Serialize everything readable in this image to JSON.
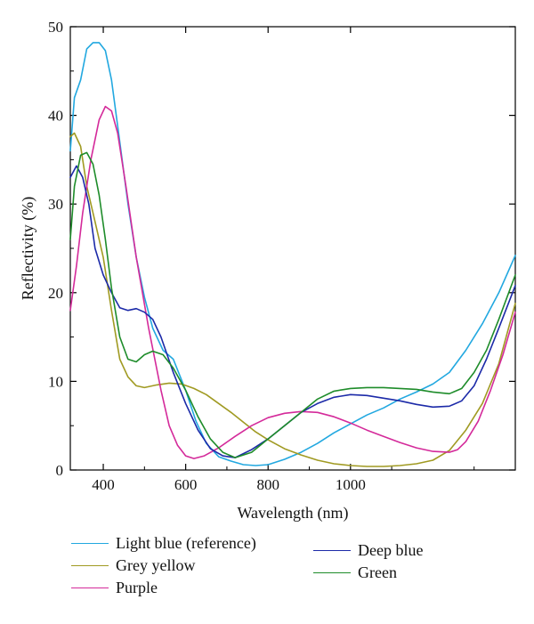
{
  "chart_data": {
    "type": "line",
    "title": "",
    "xlabel": "Wavelength (nm)",
    "ylabel": "Reflectivity (%)",
    "xlim": [
      320,
      1400
    ],
    "ylim": [
      0,
      50
    ],
    "xticks": [
      400,
      600,
      800,
      1000
    ],
    "xtick_labels": [
      "400",
      "600",
      "800",
      "1000"
    ],
    "yticks": [
      0,
      10,
      20,
      30,
      40,
      50
    ],
    "ytick_labels": [
      "0",
      "10",
      "20",
      "30",
      "40",
      "50"
    ],
    "grid": false,
    "legend_position": "bottom",
    "series": [
      {
        "name": "Light blue (reference)",
        "color": "#22a8e0",
        "points": [
          [
            320,
            36
          ],
          [
            330,
            42
          ],
          [
            345,
            44
          ],
          [
            360,
            47.5
          ],
          [
            375,
            48.2
          ],
          [
            390,
            48.2
          ],
          [
            405,
            47.3
          ],
          [
            420,
            44
          ],
          [
            440,
            37
          ],
          [
            460,
            30
          ],
          [
            480,
            24
          ],
          [
            500,
            19.5
          ],
          [
            520,
            16
          ],
          [
            545,
            13.5
          ],
          [
            570,
            12.5
          ],
          [
            600,
            9
          ],
          [
            625,
            5.5
          ],
          [
            650,
            3
          ],
          [
            680,
            1.5
          ],
          [
            710,
            1
          ],
          [
            740,
            0.6
          ],
          [
            770,
            0.5
          ],
          [
            800,
            0.6
          ],
          [
            840,
            1.2
          ],
          [
            880,
            2
          ],
          [
            920,
            3
          ],
          [
            960,
            4.2
          ],
          [
            1000,
            5.2
          ],
          [
            1040,
            6.2
          ],
          [
            1080,
            7
          ],
          [
            1120,
            8
          ],
          [
            1160,
            8.8
          ],
          [
            1200,
            9.7
          ],
          [
            1240,
            11
          ],
          [
            1280,
            13.5
          ],
          [
            1320,
            16.5
          ],
          [
            1360,
            20
          ],
          [
            1400,
            24.2
          ]
        ]
      },
      {
        "name": "Grey yellow",
        "color": "#a09a22",
        "points": [
          [
            320,
            37.6
          ],
          [
            330,
            38
          ],
          [
            345,
            36.5
          ],
          [
            360,
            32
          ],
          [
            380,
            28
          ],
          [
            400,
            24
          ],
          [
            420,
            18
          ],
          [
            440,
            12.5
          ],
          [
            460,
            10.5
          ],
          [
            480,
            9.5
          ],
          [
            500,
            9.3
          ],
          [
            530,
            9.6
          ],
          [
            560,
            9.8
          ],
          [
            590,
            9.7
          ],
          [
            620,
            9.2
          ],
          [
            650,
            8.5
          ],
          [
            680,
            7.5
          ],
          [
            710,
            6.5
          ],
          [
            740,
            5.4
          ],
          [
            770,
            4.3
          ],
          [
            800,
            3.4
          ],
          [
            840,
            2.4
          ],
          [
            880,
            1.7
          ],
          [
            920,
            1.1
          ],
          [
            960,
            0.7
          ],
          [
            1000,
            0.5
          ],
          [
            1040,
            0.4
          ],
          [
            1080,
            0.4
          ],
          [
            1120,
            0.5
          ],
          [
            1160,
            0.7
          ],
          [
            1200,
            1.1
          ],
          [
            1240,
            2.2
          ],
          [
            1280,
            4.5
          ],
          [
            1320,
            7.5
          ],
          [
            1360,
            12
          ],
          [
            1400,
            18.8
          ]
        ]
      },
      {
        "name": "Purple",
        "color": "#d42a9a",
        "points": [
          [
            320,
            18
          ],
          [
            335,
            23
          ],
          [
            350,
            29
          ],
          [
            370,
            35
          ],
          [
            390,
            39.5
          ],
          [
            405,
            41
          ],
          [
            420,
            40.5
          ],
          [
            435,
            38
          ],
          [
            455,
            32
          ],
          [
            480,
            24
          ],
          [
            510,
            16
          ],
          [
            540,
            9
          ],
          [
            560,
            5
          ],
          [
            580,
            2.8
          ],
          [
            600,
            1.6
          ],
          [
            620,
            1.3
          ],
          [
            645,
            1.6
          ],
          [
            680,
            2.5
          ],
          [
            720,
            3.8
          ],
          [
            760,
            5
          ],
          [
            800,
            5.9
          ],
          [
            840,
            6.4
          ],
          [
            880,
            6.6
          ],
          [
            920,
            6.5
          ],
          [
            960,
            6
          ],
          [
            1000,
            5.3
          ],
          [
            1040,
            4.5
          ],
          [
            1080,
            3.8
          ],
          [
            1120,
            3.1
          ],
          [
            1160,
            2.5
          ],
          [
            1200,
            2.1
          ],
          [
            1240,
            2
          ],
          [
            1260,
            2.3
          ],
          [
            1280,
            3.2
          ],
          [
            1310,
            5.5
          ],
          [
            1340,
            9
          ],
          [
            1370,
            13
          ],
          [
            1400,
            17.8
          ]
        ]
      },
      {
        "name": "Deep blue",
        "color": "#1c2aa8",
        "points": [
          [
            320,
            33
          ],
          [
            335,
            34.3
          ],
          [
            350,
            33
          ],
          [
            365,
            30
          ],
          [
            380,
            25
          ],
          [
            400,
            22
          ],
          [
            420,
            20
          ],
          [
            440,
            18.3
          ],
          [
            460,
            18
          ],
          [
            480,
            18.2
          ],
          [
            500,
            17.8
          ],
          [
            520,
            17
          ],
          [
            540,
            15
          ],
          [
            570,
            11
          ],
          [
            600,
            7.5
          ],
          [
            630,
            4.5
          ],
          [
            660,
            2.4
          ],
          [
            690,
            1.6
          ],
          [
            720,
            1.4
          ],
          [
            760,
            2.3
          ],
          [
            800,
            3.5
          ],
          [
            840,
            5
          ],
          [
            880,
            6.5
          ],
          [
            920,
            7.5
          ],
          [
            960,
            8.2
          ],
          [
            1000,
            8.5
          ],
          [
            1040,
            8.4
          ],
          [
            1080,
            8.1
          ],
          [
            1120,
            7.8
          ],
          [
            1160,
            7.4
          ],
          [
            1200,
            7.1
          ],
          [
            1240,
            7.2
          ],
          [
            1270,
            7.8
          ],
          [
            1300,
            9.5
          ],
          [
            1330,
            12.5
          ],
          [
            1360,
            16
          ],
          [
            1400,
            20.8
          ]
        ]
      },
      {
        "name": "Green",
        "color": "#1e8c2a",
        "points": [
          [
            320,
            26
          ],
          [
            330,
            32
          ],
          [
            345,
            35.5
          ],
          [
            360,
            35.8
          ],
          [
            375,
            34.5
          ],
          [
            390,
            31
          ],
          [
            405,
            26
          ],
          [
            420,
            20.5
          ],
          [
            440,
            15
          ],
          [
            460,
            12.5
          ],
          [
            480,
            12.2
          ],
          [
            500,
            13
          ],
          [
            520,
            13.4
          ],
          [
            545,
            13
          ],
          [
            570,
            11.5
          ],
          [
            600,
            9
          ],
          [
            630,
            6
          ],
          [
            660,
            3.5
          ],
          [
            690,
            2
          ],
          [
            720,
            1.4
          ],
          [
            760,
            2
          ],
          [
            800,
            3.5
          ],
          [
            840,
            5
          ],
          [
            880,
            6.5
          ],
          [
            920,
            8
          ],
          [
            960,
            8.9
          ],
          [
            1000,
            9.2
          ],
          [
            1040,
            9.3
          ],
          [
            1080,
            9.3
          ],
          [
            1120,
            9.2
          ],
          [
            1160,
            9.1
          ],
          [
            1200,
            8.8
          ],
          [
            1240,
            8.6
          ],
          [
            1270,
            9.2
          ],
          [
            1300,
            11
          ],
          [
            1330,
            13.5
          ],
          [
            1360,
            17
          ],
          [
            1400,
            22
          ]
        ]
      }
    ]
  }
}
